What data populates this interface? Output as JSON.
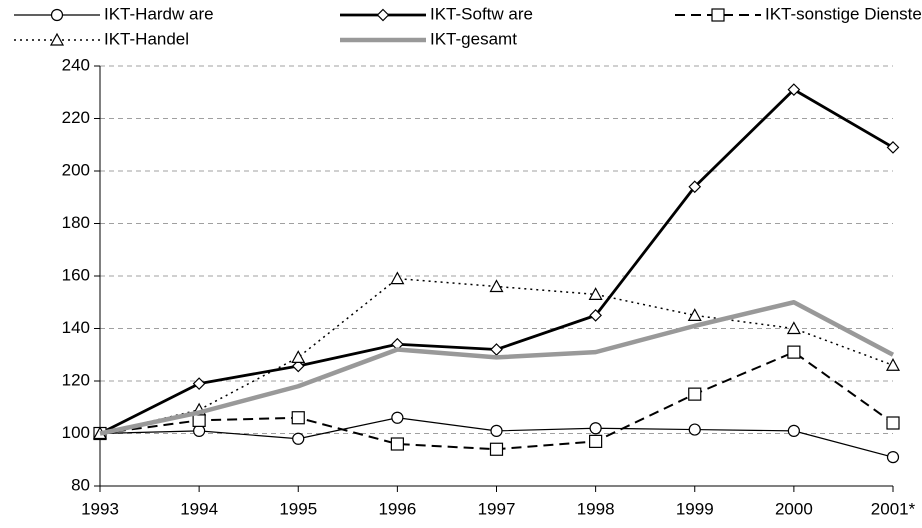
{
  "chart_data": {
    "type": "line",
    "categories": [
      "1993",
      "1994",
      "1995",
      "1996",
      "1997",
      "1998",
      "1999",
      "2000",
      "2001*"
    ],
    "ylim": [
      80,
      240
    ],
    "yticks": [
      80,
      100,
      120,
      140,
      160,
      180,
      200,
      220,
      240
    ],
    "grid": true,
    "series": [
      {
        "name": "IKT-Hardw are",
        "color": "#000000",
        "width": 1.2,
        "dash": "none",
        "marker": "circle",
        "values": [
          100,
          101,
          98,
          106,
          101,
          102,
          101.5,
          101,
          91
        ]
      },
      {
        "name": "IKT-Softw are",
        "color": "#000000",
        "width": 2.8,
        "dash": "none",
        "marker": "diamond",
        "values": [
          100,
          119,
          125.7,
          134,
          132,
          145,
          194,
          231,
          209
        ]
      },
      {
        "name": "IKT-sonstige Dienste",
        "color": "#000000",
        "width": 2,
        "dash": "10 6",
        "marker": "square",
        "values": [
          100,
          105,
          106,
          96,
          94,
          97,
          115,
          131,
          104
        ]
      },
      {
        "name": "IKT-Handel",
        "color": "#000000",
        "width": 1.5,
        "dash": "2 4",
        "marker": "triangle",
        "values": [
          100,
          109,
          129,
          159,
          156,
          153,
          145,
          140,
          126
        ]
      },
      {
        "name": "IKT-gesamt",
        "color": "#999999",
        "width": 4.5,
        "dash": "none",
        "marker": "none",
        "values": [
          100,
          108,
          118,
          132,
          129,
          131,
          141,
          150,
          130
        ]
      }
    ]
  }
}
